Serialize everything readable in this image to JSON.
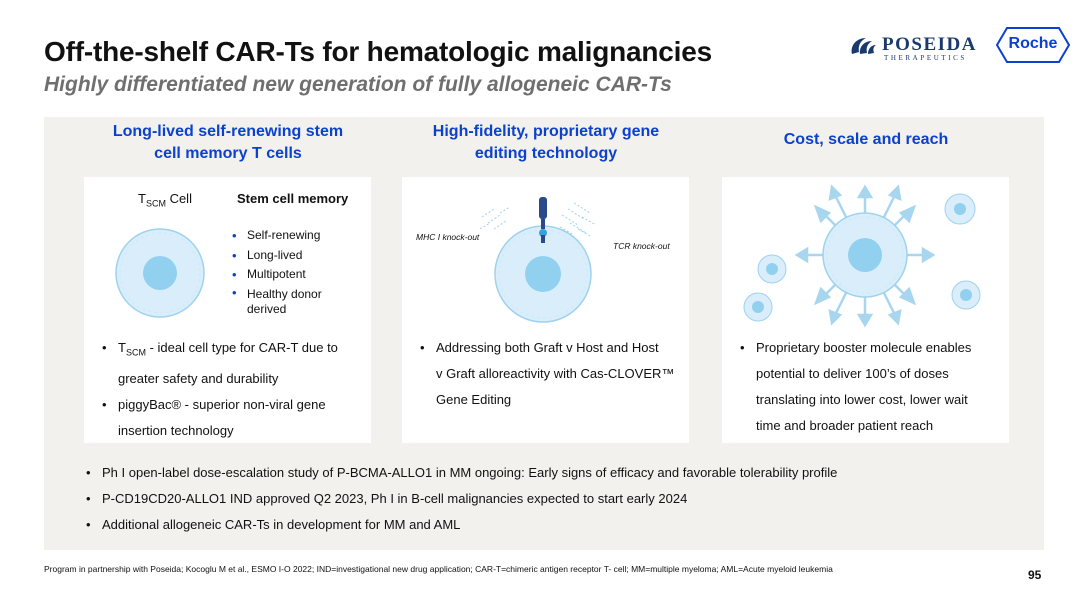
{
  "header": {
    "title": "Off-the-shelf CAR-Ts for hematologic malignancies",
    "subtitle": "Highly differentiated new generation of fully allogeneic CAR-Ts"
  },
  "logos": {
    "poseida_name": "POSEIDA",
    "poseida_tag": "THERAPEUTICS",
    "roche": "Roche"
  },
  "columns": [
    {
      "heading_line1": "Long-lived self-renewing stem",
      "heading_line2": "cell memory T cells",
      "figure": {
        "cell_label_main": "T",
        "cell_label_sub": "SCM",
        "cell_label_rest": " Cell",
        "list_title": "Stem cell memory",
        "list": [
          "Self-renewing",
          "Long-lived",
          "Multipotent",
          "Healthy donor derived"
        ]
      },
      "bullets": [
        {
          "lines": [
            "T",
            "SCM",
            " - ideal cell type for CAR-T due to",
            "greater safety and durability"
          ]
        },
        {
          "lines": [
            "piggyBac® - superior non-viral gene",
            "insertion technology"
          ]
        }
      ]
    },
    {
      "heading_line1": "High-fidelity, proprietary gene",
      "heading_line2": "editing technology",
      "figure": {
        "mhc_label": "MHC I knock-out",
        "tcr_label": "TCR knock-out"
      },
      "bullets": [
        {
          "lines": [
            "Addressing both Graft v Host and Host",
            "v Graft alloreactivity with Cas-CLOVER™",
            "Gene Editing"
          ]
        }
      ]
    },
    {
      "heading_line1": "Cost, scale and reach",
      "heading_line2": "",
      "bullets": [
        {
          "lines": [
            "Proprietary booster molecule enables",
            "potential to deliver 100’s of doses",
            "translating into lower cost, lower wait",
            "time and broader patient reach"
          ]
        }
      ]
    }
  ],
  "bottom_bullets": [
    "Ph I open-label dose-escalation study of P-BCMA-ALLO1 in MM ongoing: Early signs of efficacy and favorable tolerability profile",
    "P-CD19CD20-ALLO1 IND approved Q2 2023, Ph I in B-cell malignancies expected to start early 2024",
    "Additional allogeneic CAR-Ts in development for MM and AML"
  ],
  "footnote": "Program in partnership with Poseida; Kocoglu M et al., ESMO I-O 2022; IND=investigational new drug application; CAR-T=chimeric antigen receptor T- cell; MM=multiple myeloma; AML=Acute myeloid leukemia",
  "page_number": "95",
  "colors": {
    "accent_blue": "#0b41cd",
    "cell_fill": "#d9eefa",
    "cell_nucleus": "#92d0ef",
    "arrow": "#a9d6ef",
    "panel_bg": "#f2f1ee"
  }
}
